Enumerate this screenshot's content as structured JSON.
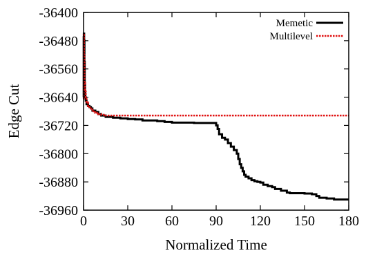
{
  "chart_data": {
    "type": "line",
    "xlabel": "Normalized Time",
    "ylabel": "Edge Cut",
    "xlim": [
      0,
      180
    ],
    "ylim": [
      -36960,
      -36400
    ],
    "x_ticks": [
      0,
      30,
      60,
      90,
      120,
      150,
      180
    ],
    "y_ticks": [
      -36400,
      -36480,
      -36560,
      -36640,
      -36720,
      -36800,
      -36880,
      -36960
    ],
    "grid": false,
    "legend_position": "top-right",
    "series": [
      {
        "name": "Memetic",
        "color": "#000000",
        "style": "solid",
        "x": [
          0,
          0.1,
          0.2,
          0.4,
          0.6,
          0.8,
          1,
          1.2,
          1.5,
          2,
          3,
          4,
          5,
          6,
          8,
          10,
          12,
          15,
          20,
          25,
          30,
          35,
          40,
          50,
          55,
          60,
          65,
          70,
          75,
          80,
          85,
          89,
          90,
          91,
          92,
          94,
          96,
          98,
          100,
          102,
          104,
          105,
          106,
          107,
          108,
          109,
          110,
          112,
          114,
          116,
          118,
          120,
          122,
          125,
          128,
          130,
          134,
          138,
          140,
          142,
          145,
          150,
          155,
          158,
          160,
          165,
          170,
          175,
          180
        ],
        "y": [
          -36640,
          -36470,
          -36460,
          -36480,
          -36540,
          -36600,
          -36630,
          -36640,
          -36650,
          -36660,
          -36665,
          -36668,
          -36672,
          -36678,
          -36682,
          -36688,
          -36692,
          -36696,
          -36698,
          -36700,
          -36702,
          -36703,
          -36706,
          -36708,
          -36710,
          -36712,
          -36712,
          -36712,
          -36713,
          -36713,
          -36713,
          -36713,
          -36720,
          -36730,
          -36745,
          -36755,
          -36760,
          -36770,
          -36780,
          -36790,
          -36800,
          -36815,
          -36830,
          -36840,
          -36850,
          -36860,
          -36865,
          -36870,
          -36875,
          -36878,
          -36880,
          -36882,
          -36888,
          -36892,
          -36895,
          -36900,
          -36905,
          -36910,
          -36912,
          -36912,
          -36912,
          -36913,
          -36915,
          -36920,
          -36925,
          -36927,
          -36930,
          -36930,
          -36930
        ]
      },
      {
        "name": "Multilevel",
        "color": "#e01010",
        "style": "dotted",
        "x": [
          0,
          0.1,
          0.3,
          0.6,
          1,
          1.5,
          2,
          3,
          4,
          6,
          8,
          10,
          12,
          15,
          20,
          30,
          60,
          90,
          120,
          150,
          180
        ],
        "y": [
          -36645,
          -36460,
          -36520,
          -36600,
          -36620,
          -36640,
          -36655,
          -36665,
          -36672,
          -36680,
          -36685,
          -36688,
          -36690,
          -36692,
          -36692,
          -36692,
          -36692,
          -36692,
          -36692,
          -36692,
          -36692
        ]
      }
    ]
  }
}
